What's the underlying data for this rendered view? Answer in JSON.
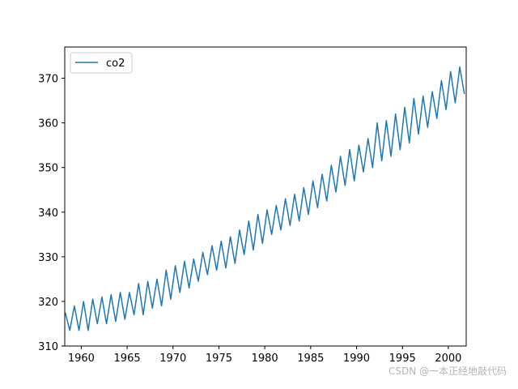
{
  "chart_data": {
    "type": "line",
    "title": "",
    "xlabel": "",
    "ylabel": "",
    "xlim": [
      1958.2,
      2001.95
    ],
    "ylim": [
      310,
      377
    ],
    "x_ticks": [
      1960,
      1965,
      1970,
      1975,
      1980,
      1985,
      1990,
      1995,
      2000
    ],
    "y_ticks": [
      310,
      320,
      330,
      340,
      350,
      360,
      370
    ],
    "grid": false,
    "legend": {
      "position": "top-left",
      "entries": [
        "co2"
      ]
    },
    "series": [
      {
        "name": "co2",
        "color": "#1f77b4",
        "x": [
          1958.25,
          1958.75,
          1959.25,
          1959.75,
          1960.25,
          1960.75,
          1961.25,
          1961.75,
          1962.25,
          1962.75,
          1963.25,
          1963.75,
          1964.25,
          1964.75,
          1965.25,
          1965.75,
          1966.25,
          1966.75,
          1967.25,
          1967.75,
          1968.25,
          1968.75,
          1969.25,
          1969.75,
          1970.25,
          1970.75,
          1971.25,
          1971.75,
          1972.25,
          1972.75,
          1973.25,
          1973.75,
          1974.25,
          1974.75,
          1975.25,
          1975.75,
          1976.25,
          1976.75,
          1977.25,
          1977.75,
          1978.25,
          1978.75,
          1979.25,
          1979.75,
          1980.25,
          1980.75,
          1981.25,
          1981.75,
          1982.25,
          1982.75,
          1983.25,
          1983.75,
          1984.25,
          1984.75,
          1985.25,
          1985.75,
          1986.25,
          1986.75,
          1987.25,
          1987.75,
          1988.25,
          1988.75,
          1989.25,
          1989.75,
          1990.25,
          1990.75,
          1991.25,
          1991.75,
          1992.25,
          1992.75,
          1993.25,
          1993.75,
          1994.25,
          1994.75,
          1995.25,
          1995.75,
          1996.25,
          1996.75,
          1997.25,
          1997.75,
          1998.25,
          1998.75,
          1999.25,
          1999.75,
          2000.25,
          2000.75,
          2001.25,
          2001.75
        ],
        "values": [
          317.5,
          313.5,
          319.0,
          313.5,
          320.0,
          313.5,
          320.5,
          315.0,
          321.0,
          315.0,
          321.5,
          315.5,
          322.0,
          316.0,
          322.0,
          317.0,
          324.0,
          317.0,
          324.5,
          318.5,
          325.0,
          319.0,
          327.0,
          320.5,
          328.0,
          322.0,
          329.0,
          323.0,
          329.5,
          324.5,
          331.0,
          326.0,
          332.5,
          327.0,
          333.5,
          327.5,
          334.5,
          328.5,
          336.0,
          330.5,
          338.0,
          331.5,
          339.5,
          333.0,
          340.5,
          335.0,
          341.5,
          336.0,
          343.0,
          337.0,
          344.0,
          338.0,
          345.5,
          339.5,
          347.0,
          341.0,
          348.5,
          342.5,
          350.5,
          344.5,
          352.5,
          346.0,
          354.0,
          347.0,
          355.0,
          349.0,
          356.5,
          350.0,
          360.0,
          351.5,
          360.5,
          352.5,
          362.0,
          354.0,
          363.5,
          355.5,
          365.5,
          357.5,
          366.0,
          359.0,
          367.0,
          361.0,
          369.5,
          363.0,
          371.5,
          364.5,
          372.5,
          366.5
        ]
      }
    ]
  },
  "watermark": "CSDN @一本正经地敲代码"
}
